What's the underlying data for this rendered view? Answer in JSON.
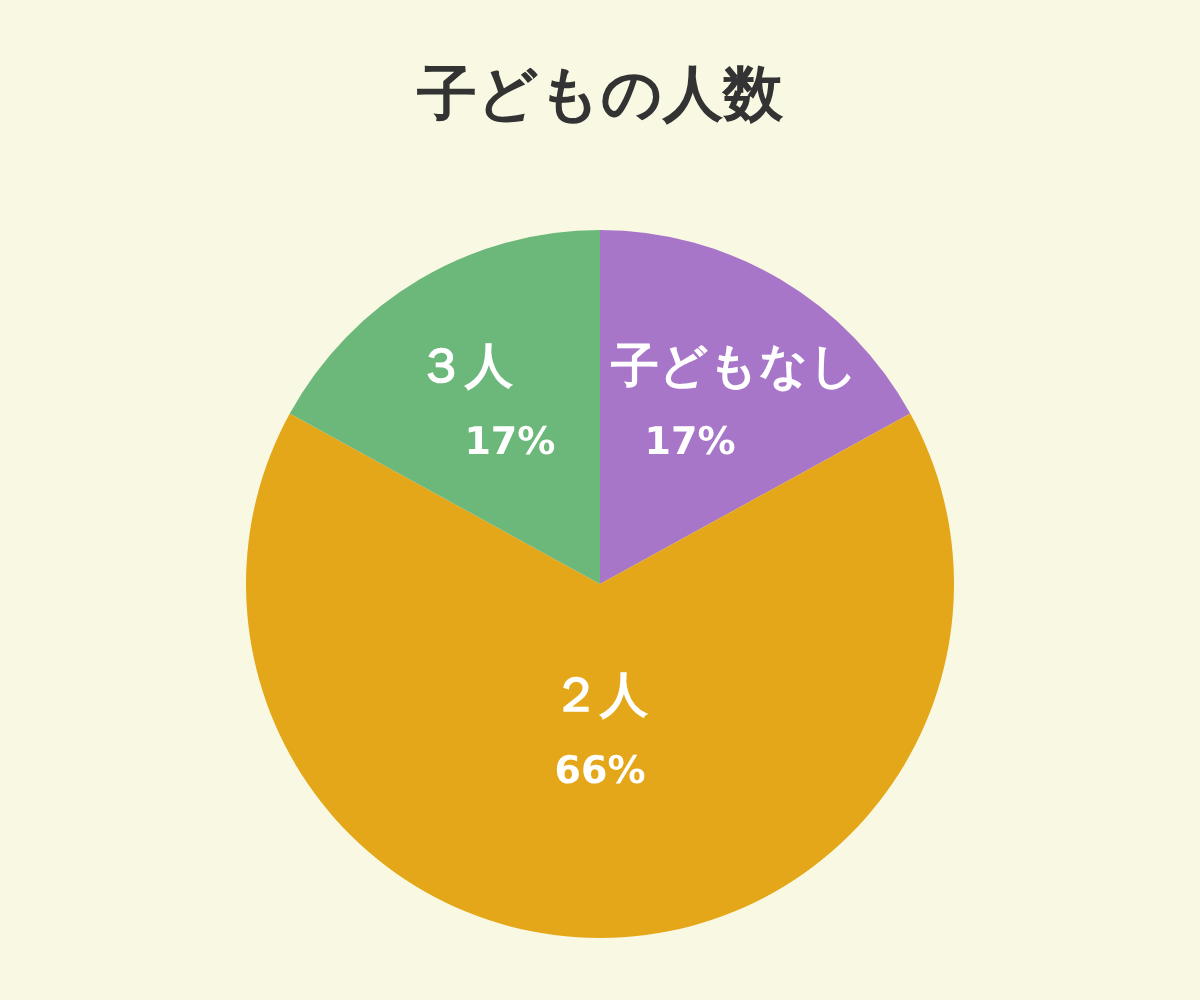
{
  "chart_data": {
    "type": "pie",
    "title": "子どもの人数",
    "categories": [
      "子どもなし",
      "２人",
      "３人"
    ],
    "values": [
      17,
      66,
      17
    ],
    "colors": [
      "#a776c8",
      "#e4a719",
      "#6cb77a"
    ],
    "value_labels": [
      "17%",
      "66%",
      "17%"
    ]
  }
}
